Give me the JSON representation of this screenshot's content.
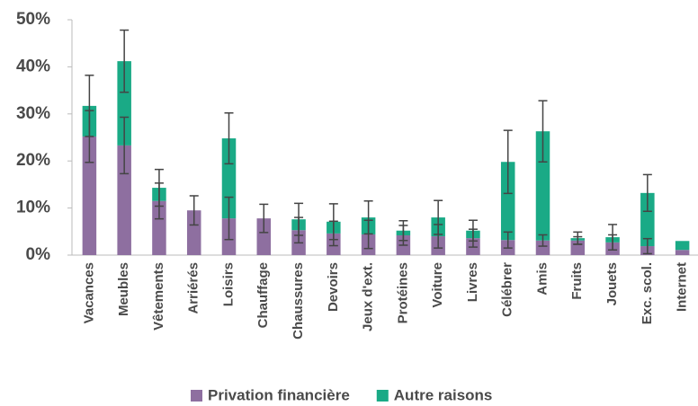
{
  "chart_data": {
    "type": "bar",
    "categories": [
      "Vacances",
      "Meubles",
      "Vêtements",
      "Arriérés",
      "Loisirs",
      "Chauffage",
      "Chaussures",
      "Devoirs",
      "Jeux d'ext.",
      "Protéines",
      "Voiture",
      "Livres",
      "Célébrer",
      "Amis",
      "Fruits",
      "Jouets",
      "Exc. scol.",
      "Internet"
    ],
    "series": [
      {
        "name": "Privation financière",
        "color": "#8e6fa0",
        "values": [
          25.2,
          23.3,
          11.5,
          9.5,
          7.8,
          7.8,
          5.3,
          4.6,
          4.4,
          4.2,
          4.0,
          3.6,
          3.2,
          3.1,
          3.1,
          2.7,
          1.9,
          1.1
        ],
        "errors": [
          5.5,
          6.0,
          3.8,
          3.1,
          4.5,
          3.0,
          2.7,
          2.6,
          3.0,
          2.1,
          2.5,
          1.9,
          1.7,
          1.2,
          0.8,
          1.6,
          1.6,
          null
        ]
      },
      {
        "name": "Autre raisons",
        "color": "#1aaa86",
        "values": [
          6.5,
          17.9,
          2.8,
          0,
          17.0,
          0,
          2.3,
          2.5,
          3.6,
          1.0,
          4.0,
          1.6,
          16.6,
          23.2,
          0.5,
          1.1,
          11.3,
          1.9
        ],
        "errors": [
          6.5,
          6.6,
          3.9,
          null,
          5.4,
          null,
          3.4,
          3.8,
          3.5,
          2.1,
          3.6,
          2.2,
          6.7,
          6.5,
          1.3,
          2.7,
          3.9,
          null
        ]
      }
    ],
    "ylim": [
      0,
      50
    ],
    "yticks": [
      {
        "value": 0,
        "label": "0%"
      },
      {
        "value": 10,
        "label": "10%"
      },
      {
        "value": 20,
        "label": "20%"
      },
      {
        "value": 30,
        "label": "30%"
      },
      {
        "value": 40,
        "label": "40%"
      },
      {
        "value": 50,
        "label": "50%"
      }
    ],
    "stacked": true,
    "grid": false,
    "legend": "bottom"
  }
}
